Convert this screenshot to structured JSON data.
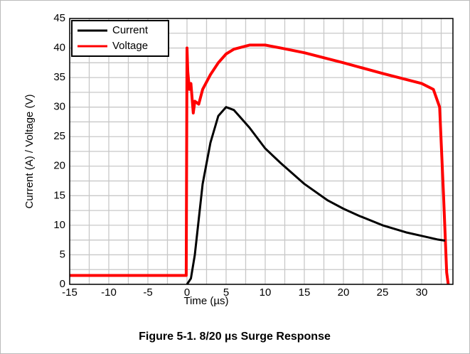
{
  "chart_data": {
    "type": "line",
    "title": "Figure 5-1. 8/20 µs Surge Response",
    "x_label": "Time (µs)",
    "y_label": "Current (A) / Voltage (V)",
    "xlim": [
      -15,
      34
    ],
    "xticks": [
      -15,
      -10,
      -5,
      0,
      5,
      10,
      15,
      20,
      25,
      30
    ],
    "ylim": [
      0,
      45
    ],
    "yticks": [
      0,
      5,
      10,
      15,
      20,
      25,
      30,
      35,
      40,
      45
    ],
    "grid": true,
    "minor_grid": true,
    "legend": "upper left",
    "series": [
      {
        "name": "Current",
        "color": "#000000",
        "x": [
          0,
          0.5,
          1,
          1.5,
          2,
          3,
          4,
          5,
          6,
          7,
          8,
          10,
          12,
          15,
          18,
          20,
          22,
          25,
          28,
          30,
          32,
          33
        ],
        "values": [
          0,
          1,
          5,
          11,
          17,
          24,
          28.5,
          30,
          29.5,
          28,
          26.5,
          23,
          20.5,
          17,
          14.2,
          12.8,
          11.6,
          10,
          8.8,
          8.2,
          7.6,
          7.4
        ]
      },
      {
        "name": "Voltage",
        "color": "#ff0000",
        "x": [
          -15,
          -10,
          -5,
          -0.1,
          0,
          0.1,
          0.3,
          0.5,
          0.8,
          1,
          1.5,
          2,
          3,
          4,
          5,
          6,
          8,
          10,
          12,
          15,
          20,
          25,
          30,
          31.5,
          32.3,
          32.8,
          33.2,
          33.4
        ],
        "values": [
          1.5,
          1.5,
          1.5,
          1.5,
          40,
          36,
          33,
          34,
          29,
          31,
          30.5,
          33,
          35.5,
          37.5,
          39,
          39.8,
          40.5,
          40.5,
          40,
          39.2,
          37.5,
          35.7,
          34,
          33,
          30,
          15,
          2,
          0
        ]
      }
    ]
  }
}
